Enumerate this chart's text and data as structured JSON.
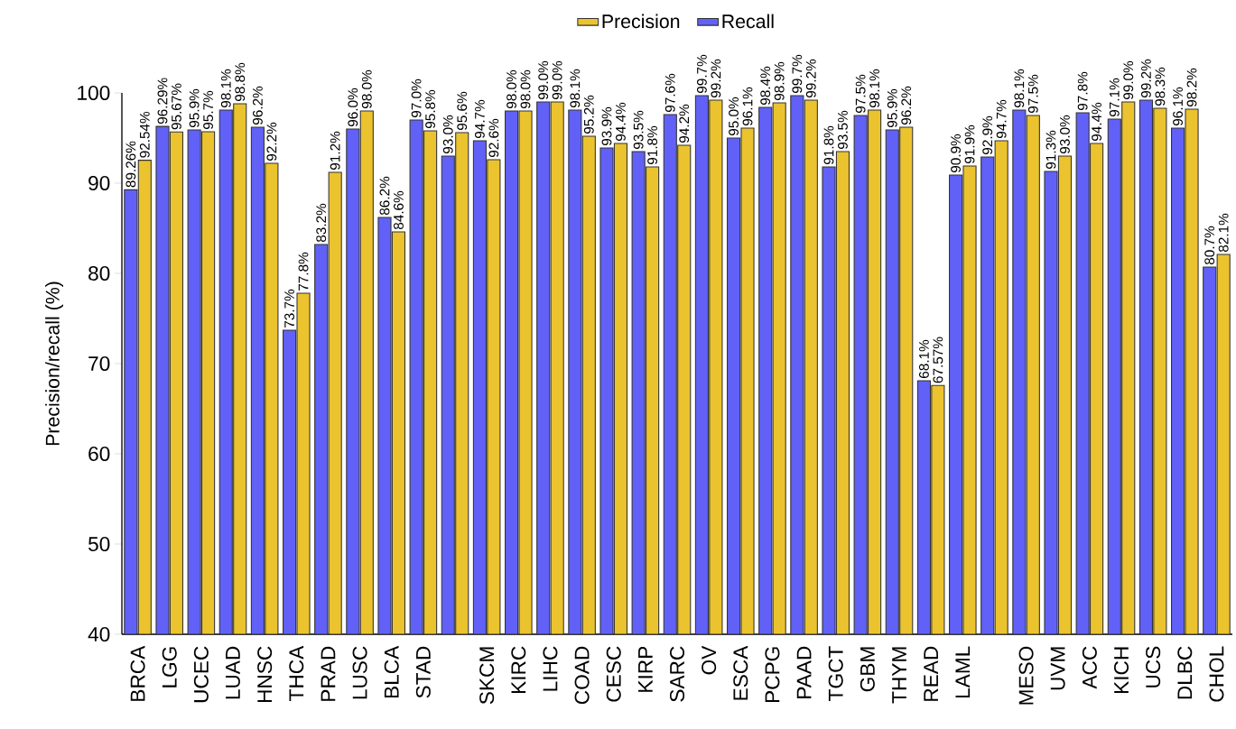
{
  "chart_data": {
    "type": "bar",
    "ylabel": "Precision/recall (%)",
    "categories": [
      "BRCA",
      "LGG",
      "UCEC",
      "LUAD",
      "HNSC",
      "THCA",
      "PRAD",
      "LUSC",
      "BLCA",
      "STAD",
      null,
      "SKCM",
      "KIRC",
      "LIHC",
      "COAD",
      "CESC",
      "KIRP",
      "SARC",
      "OV",
      "ESCA",
      "PCPG",
      "PAAD",
      "TGCT",
      "GBM",
      "THYM",
      "READ",
      "LAML",
      null,
      "MESO",
      "UVM",
      "ACC",
      "KICH",
      "UCS",
      "DLBC",
      "CHOL"
    ],
    "series": [
      {
        "name": "Recall",
        "color": "#6161f7",
        "values": [
          89.26,
          96.29,
          95.9,
          98.1,
          96.2,
          73.7,
          83.2,
          96.0,
          86.2,
          97.0,
          93.0,
          94.7,
          98.0,
          99.0,
          98.1,
          93.9,
          93.5,
          97.6,
          99.7,
          95.0,
          98.4,
          99.7,
          91.8,
          97.5,
          95.9,
          68.1,
          90.9,
          92.9,
          98.1,
          91.3,
          97.8,
          97.1,
          99.2,
          96.1,
          80.7
        ],
        "value_labels": [
          "89.26%",
          "96.29%",
          "95.9%",
          "98.1%",
          "96.2%",
          "73.7%",
          "83.2%",
          "96.0%",
          "86.2%",
          "97.0%",
          "93.0%",
          "94.7%",
          "98.0%",
          "99.0%",
          "98.1%",
          "93.9%",
          "93.5%",
          "97.6%",
          "99.7%",
          "95.0%",
          "98.4%",
          "99.7%",
          "91.8%",
          "97.5%",
          "95.9%",
          "68.1%",
          "90.9%",
          "92.9%",
          "98.1%",
          "91.3%",
          "97.8%",
          "97.1%",
          "99.2%",
          "96.1%",
          "80.7%"
        ]
      },
      {
        "name": "Precision",
        "color": "#ebc32f",
        "values": [
          92.54,
          95.67,
          95.7,
          98.8,
          92.2,
          77.8,
          91.2,
          98.0,
          84.6,
          95.8,
          95.6,
          92.6,
          98.0,
          99.0,
          95.2,
          94.4,
          91.8,
          94.2,
          99.2,
          96.1,
          98.9,
          99.2,
          93.5,
          98.1,
          96.2,
          67.57,
          91.9,
          94.7,
          97.5,
          93.0,
          94.4,
          99.0,
          98.3,
          98.2,
          82.1
        ],
        "value_labels": [
          "92.54%",
          "95.67%",
          "95.7%",
          "98.8%",
          "92.2%",
          "77.8%",
          "91.2%",
          "98.0%",
          "84.6%",
          "95.8%",
          "95.6%",
          "92.6%",
          "98.0%",
          "99.0%",
          "95.2%",
          "94.4%",
          "91.8%",
          "94.2%",
          "99.2%",
          "96.1%",
          "98.9%",
          "99.2%",
          "93.5%",
          "98.1%",
          "96.2%",
          "67.57%",
          "91.9%",
          "94.7%",
          "97.5%",
          "93.0%",
          "94.4%",
          "99.0%",
          "98.3%",
          "98.2%",
          "82.1%"
        ]
      }
    ],
    "ylim": [
      40,
      100
    ],
    "yticks": [
      40,
      50,
      60,
      70,
      80,
      90,
      100
    ],
    "legend": "top",
    "grid": false
  }
}
